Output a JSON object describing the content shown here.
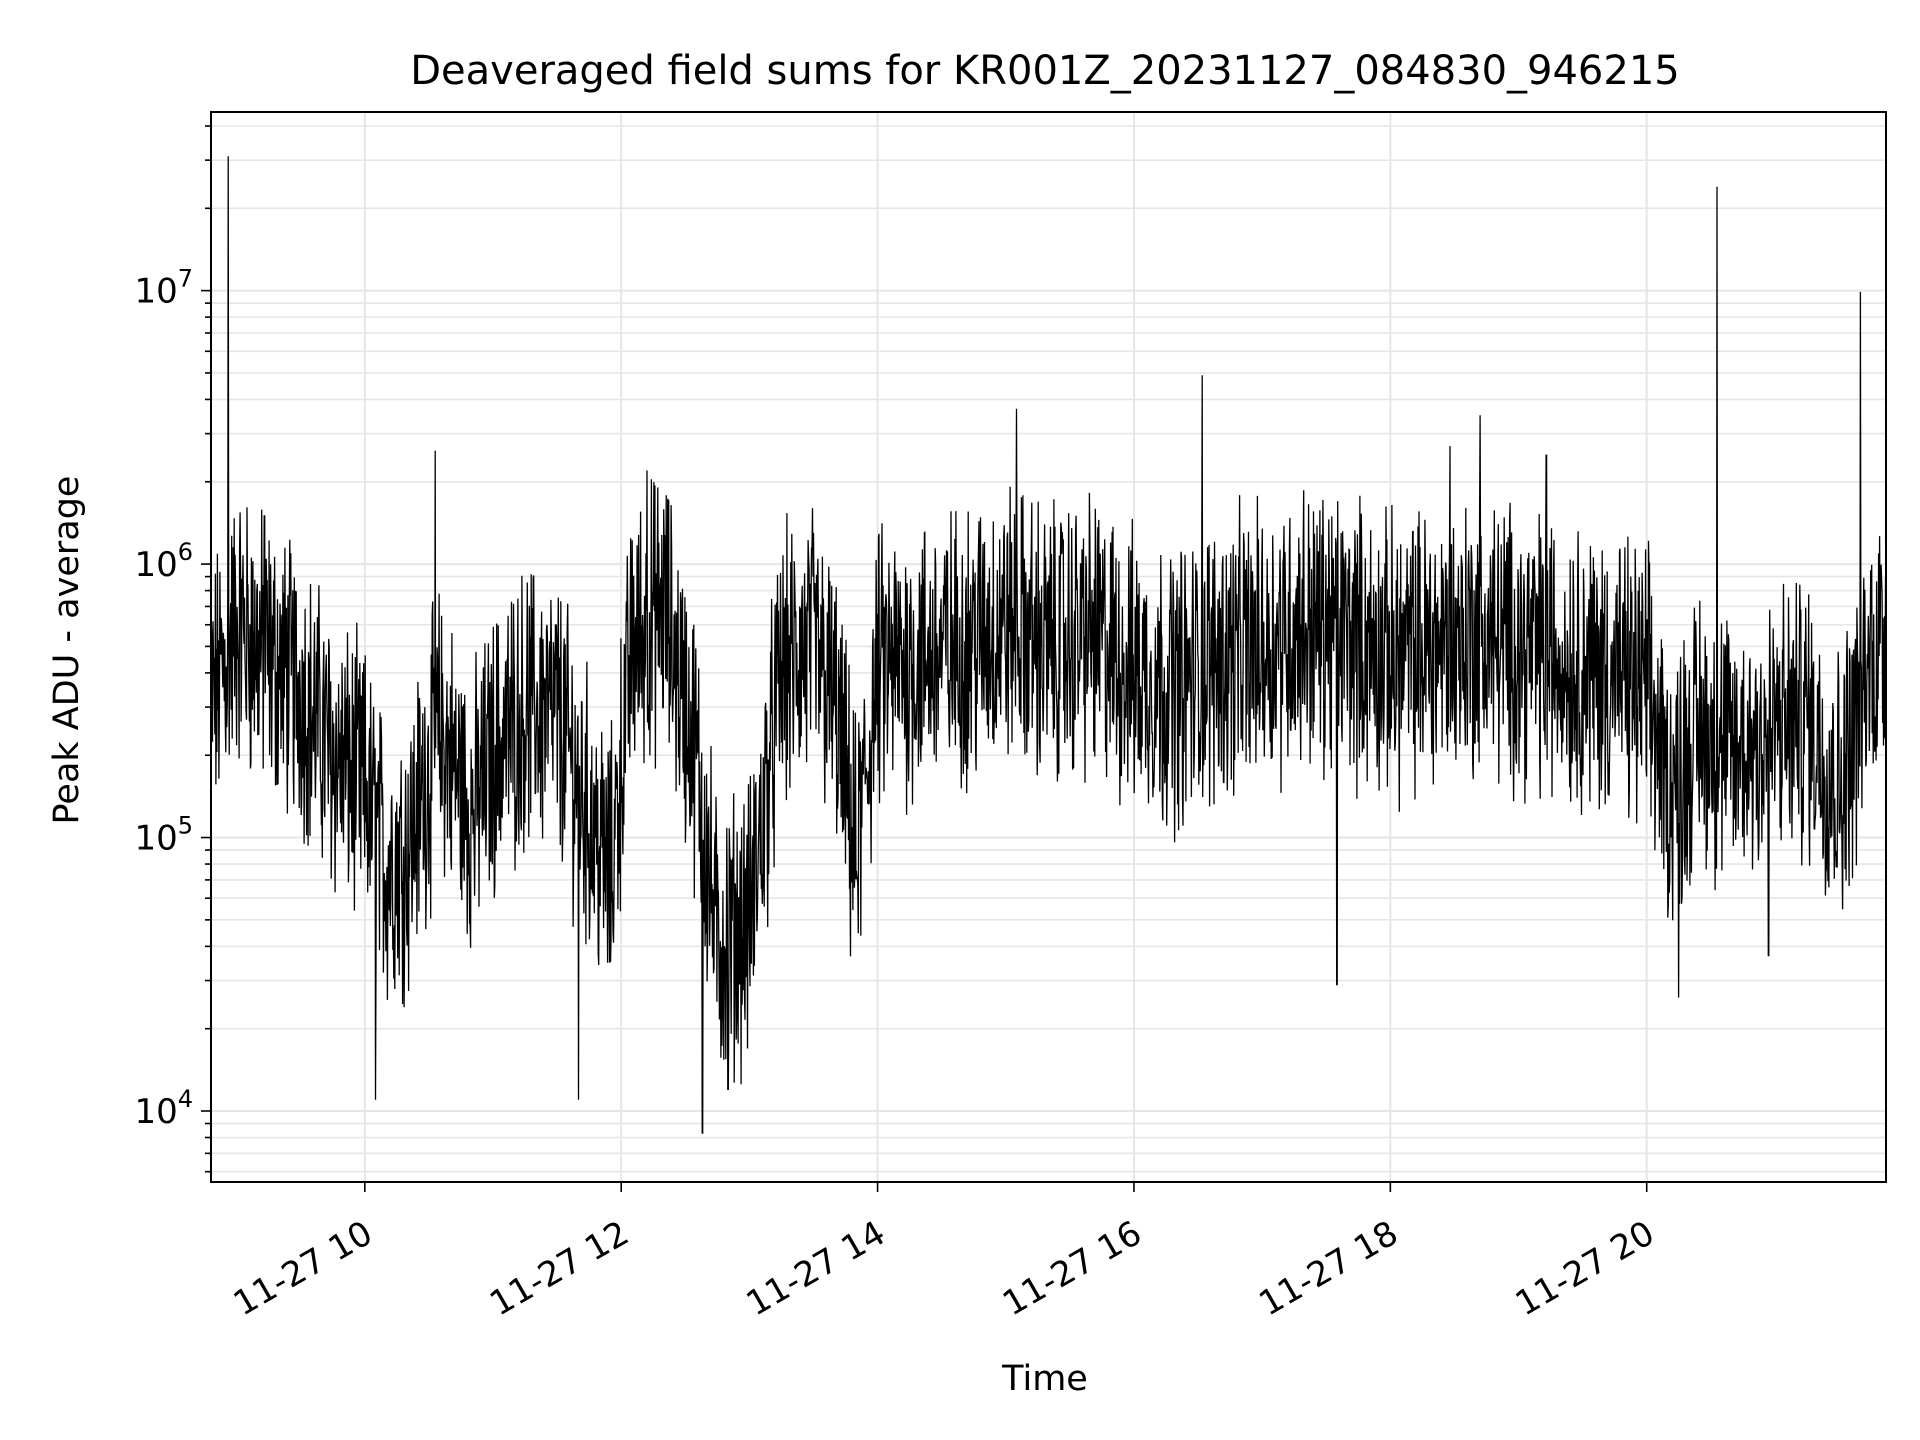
{
  "chart_data": {
    "type": "line",
    "title": "Deaveraged field sums for KR001Z_20231127_084830_946215",
    "xlabel": "Time",
    "ylabel": "Peak ADU - average",
    "y_scale": "log",
    "ylim": [
      5500,
      45000000
    ],
    "xlim": [
      "2023-11-27 08:48",
      "2023-11-27 21:52"
    ],
    "grid": true,
    "line_color": "#000000",
    "grid_color": "#e6e6e6",
    "x_ticks": [
      {
        "value": "2023-11-27 10:00",
        "label": "11-27 10"
      },
      {
        "value": "2023-11-27 12:00",
        "label": "11-27 12"
      },
      {
        "value": "2023-11-27 14:00",
        "label": "11-27 14"
      },
      {
        "value": "2023-11-27 16:00",
        "label": "11-27 16"
      },
      {
        "value": "2023-11-27 18:00",
        "label": "11-27 18"
      },
      {
        "value": "2023-11-27 20:00",
        "label": "11-27 20"
      }
    ],
    "y_ticks": [
      {
        "value": 10000,
        "base": "10",
        "exp": "4"
      },
      {
        "value": 100000,
        "base": "10",
        "exp": "5"
      },
      {
        "value": 1000000,
        "base": "10",
        "exp": "6"
      },
      {
        "value": 10000000,
        "base": "10",
        "exp": "7"
      }
    ],
    "series": [
      {
        "x": [
          "2023-11-27 08:48",
          "2023-11-27 09:00",
          "2023-11-27 09:15",
          "2023-11-27 09:30",
          "2023-11-27 09:45",
          "2023-11-27 10:00",
          "2023-11-27 10:10",
          "2023-11-27 10:20",
          "2023-11-27 10:35",
          "2023-11-27 10:50",
          "2023-11-27 11:00",
          "2023-11-27 11:15",
          "2023-11-27 11:30",
          "2023-11-27 11:45",
          "2023-11-27 11:55",
          "2023-11-27 12:05",
          "2023-11-27 12:20",
          "2023-11-27 12:35",
          "2023-11-27 12:45",
          "2023-11-27 13:00",
          "2023-11-27 13:15",
          "2023-11-27 13:30",
          "2023-11-27 13:40",
          "2023-11-27 13:50",
          "2023-11-27 14:00",
          "2023-11-27 14:20",
          "2023-11-27 14:40",
          "2023-11-27 15:00",
          "2023-11-27 15:20",
          "2023-11-27 15:40",
          "2023-11-27 16:00",
          "2023-11-27 16:20",
          "2023-11-27 16:40",
          "2023-11-27 17:00",
          "2023-11-27 17:20",
          "2023-11-27 17:40",
          "2023-11-27 18:00",
          "2023-11-27 18:20",
          "2023-11-27 18:40",
          "2023-11-27 19:00",
          "2023-11-27 19:20",
          "2023-11-27 19:40",
          "2023-11-27 20:00",
          "2023-11-27 20:10",
          "2023-11-27 20:25",
          "2023-11-27 20:40",
          "2023-11-27 21:00",
          "2023-11-27 21:15",
          "2023-11-27 21:30",
          "2023-11-27 21:45",
          "2023-11-27 21:52"
        ],
        "y": [
          300000,
          600000,
          450000,
          350000,
          200000,
          150000,
          80000,
          90000,
          250000,
          120000,
          200000,
          300000,
          280000,
          120000,
          70000,
          500000,
          700000,
          200000,
          40000,
          50000,
          400000,
          500000,
          300000,
          80000,
          400000,
          450000,
          500000,
          600000,
          500000,
          550000,
          400000,
          350000,
          450000,
          500000,
          600000,
          550000,
          450000,
          500000,
          550000,
          500000,
          450000,
          400000,
          350000,
          150000,
          250000,
          200000,
          250000,
          280000,
          150000,
          450000,
          600000
        ]
      }
    ],
    "spikes": [
      {
        "x": "2023-11-27 08:56",
        "y": 31000000
      },
      {
        "x": "2023-11-27 09:13",
        "y": 1500000
      },
      {
        "x": "2023-11-27 10:33",
        "y": 2600000
      },
      {
        "x": "2023-11-27 12:12",
        "y": 2200000
      },
      {
        "x": "2023-11-27 15:05",
        "y": 3700000
      },
      {
        "x": "2023-11-27 16:32",
        "y": 4900000
      },
      {
        "x": "2023-11-27 18:28",
        "y": 2700000
      },
      {
        "x": "2023-11-27 18:42",
        "y": 3500000
      },
      {
        "x": "2023-11-27 19:13",
        "y": 2500000
      },
      {
        "x": "2023-11-27 20:33",
        "y": 24000000
      },
      {
        "x": "2023-11-27 21:40",
        "y": 9900000
      },
      {
        "x": "2023-11-27 10:05",
        "y": 11000
      },
      {
        "x": "2023-11-27 11:40",
        "y": 11000
      },
      {
        "x": "2023-11-27 12:38",
        "y": 8300
      },
      {
        "x": "2023-11-27 12:50",
        "y": 12000
      },
      {
        "x": "2023-11-27 17:35",
        "y": 29000
      },
      {
        "x": "2023-11-27 20:15",
        "y": 26000
      },
      {
        "x": "2023-11-27 20:57",
        "y": 37000
      }
    ]
  }
}
